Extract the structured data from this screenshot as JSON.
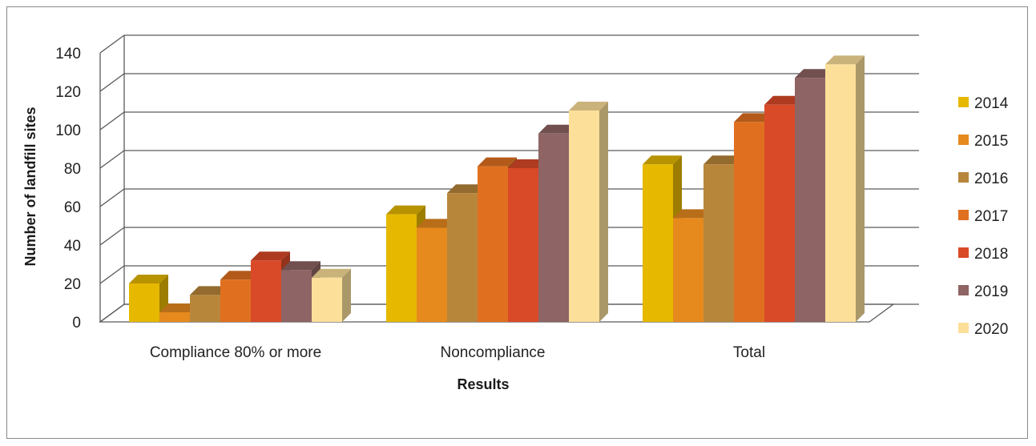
{
  "chart_data": {
    "type": "bar",
    "title": "",
    "xlabel": "Results",
    "ylabel": "Number of landfill sites",
    "categories": [
      "Compliance 80% or more",
      "Noncompliance",
      "Total"
    ],
    "series": [
      {
        "name": "2014",
        "color": "#E6B800",
        "values": [
          20,
          56,
          82
        ]
      },
      {
        "name": "2015",
        "color": "#E68A1E",
        "values": [
          5,
          49,
          54
        ]
      },
      {
        "name": "2016",
        "color": "#B8863B",
        "values": [
          14,
          67,
          82
        ]
      },
      {
        "name": "2017",
        "color": "#E07020",
        "values": [
          22,
          81,
          104
        ]
      },
      {
        "name": "2018",
        "color": "#D94A28",
        "values": [
          32,
          80,
          113
        ]
      },
      {
        "name": "2019",
        "color": "#8E6464",
        "values": [
          27,
          98,
          127
        ]
      },
      {
        "name": "2020",
        "color": "#FCE09A",
        "values": [
          23,
          110,
          134
        ]
      }
    ],
    "ylim": [
      0,
      140
    ],
    "yticks": [
      0,
      20,
      40,
      60,
      80,
      100,
      120,
      140
    ],
    "grid": true,
    "legend": "right",
    "style": "3d-clustered-column"
  }
}
